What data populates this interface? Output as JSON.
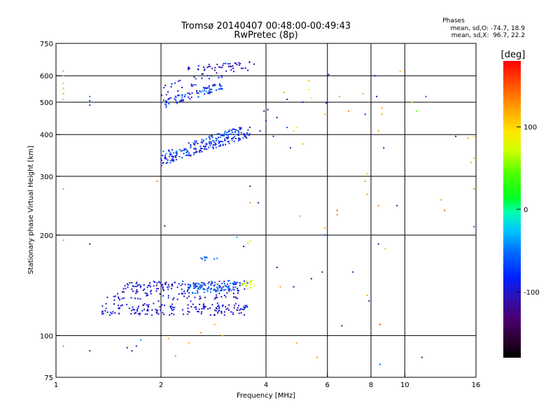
{
  "chart_data": {
    "type": "scatter",
    "title": "Tromsø 20140407 00:48:00-00:49:43",
    "subtitle": "RwPretec (8p)",
    "xlabel": "Frequency [MHz]",
    "ylabel": "Stationary phase Virtual Height [km]",
    "x_scale": "log",
    "y_scale": "log",
    "xlim": [
      1,
      16
    ],
    "ylim": [
      75,
      750
    ],
    "x_ticks": [
      1,
      2,
      4,
      6,
      8,
      10,
      16
    ],
    "x_tick_labels": [
      "1",
      "2",
      "4",
      "6",
      "8",
      "10",
      "16"
    ],
    "y_ticks": [
      75,
      100,
      200,
      300,
      400,
      500,
      600,
      750
    ],
    "y_tick_labels": [
      "75",
      "100",
      "200",
      "300",
      "400",
      "500",
      "600",
      "750"
    ],
    "grid": true,
    "stats": {
      "heading": "Phases",
      "line1": "mean, sd,O: -74.7, 18.9",
      "line2": "mean, sd,X:  96.7, 22.2"
    },
    "colorbar": {
      "label": "[deg]",
      "range": [
        -180,
        180
      ],
      "ticks": [
        100,
        0,
        -100
      ],
      "tick_labels": [
        "100",
        "0",
        "-100"
      ]
    },
    "traces": [
      {
        "x": [
          1.35,
          3.55
        ],
        "y": [
          120,
          120
        ],
        "h_jitter": 5,
        "n": 170,
        "phase_range": [
          -120,
          -75
        ]
      },
      {
        "x": [
          1.55,
          3.55
        ],
        "y": [
          140,
          141
        ],
        "h_jitter": 5,
        "n": 150,
        "phase_range": [
          -120,
          -70
        ]
      },
      {
        "x": [
          1.4,
          3.5
        ],
        "y": [
          130,
          131
        ],
        "h_jitter": 4,
        "n": 60,
        "phase_range": [
          -115,
          -80
        ]
      },
      {
        "x": [
          2.4,
          3.3
        ],
        "y": [
          138,
          142
        ],
        "h_jitter": 5,
        "n": 70,
        "phase_range": [
          -65,
          -40
        ]
      },
      {
        "x": [
          3.4,
          3.7
        ],
        "y": [
          140,
          144
        ],
        "h_jitter": 4,
        "n": 18,
        "phase_range": [
          50,
          90
        ]
      },
      {
        "x": [
          2.6,
          2.9
        ],
        "y": [
          170,
          170
        ],
        "h_jitter": 2,
        "n": 10,
        "phase_range": [
          -60,
          -45
        ]
      },
      {
        "x": [
          2.0,
          3.6
        ],
        "y": [
          330,
          400
        ],
        "h_jitter": 8,
        "n": 120,
        "phase_range": [
          -110,
          -55
        ]
      },
      {
        "x": [
          2.0,
          3.6
        ],
        "y": [
          345,
          420
        ],
        "h_jitter": 10,
        "n": 110,
        "phase_range": [
          -110,
          -40
        ]
      },
      {
        "x": [
          2.0,
          3.7
        ],
        "y": [
          540,
          650
        ],
        "h_jitter": 20,
        "n": 40,
        "phase_range": [
          -120,
          -70
        ]
      },
      {
        "x": [
          2.0,
          3.0
        ],
        "y": [
          490,
          560
        ],
        "h_jitter": 15,
        "n": 90,
        "phase_range": [
          -120,
          -40
        ]
      },
      {
        "x": [
          2.3,
          3.4
        ],
        "y": [
          625,
          645
        ],
        "h_jitter": 15,
        "n": 35,
        "phase_range": [
          -120,
          -80
        ]
      }
    ],
    "points": [
      {
        "x": 1.05,
        "y": 620,
        "phase": 120
      },
      {
        "x": 1.05,
        "y": 600,
        "phase": 120
      },
      {
        "x": 1.05,
        "y": 570,
        "phase": 110
      },
      {
        "x": 1.05,
        "y": 550,
        "phase": 115
      },
      {
        "x": 1.05,
        "y": 530,
        "phase": 120
      },
      {
        "x": 1.05,
        "y": 510,
        "phase": 110
      },
      {
        "x": 1.05,
        "y": 275,
        "phase": 130
      },
      {
        "x": 1.05,
        "y": 193,
        "phase": 125
      },
      {
        "x": 1.05,
        "y": 93,
        "phase": 135
      },
      {
        "x": 1.25,
        "y": 520,
        "phase": -50
      },
      {
        "x": 1.25,
        "y": 505,
        "phase": -70
      },
      {
        "x": 1.25,
        "y": 490,
        "phase": -95
      },
      {
        "x": 1.25,
        "y": 188,
        "phase": -110
      },
      {
        "x": 1.25,
        "y": 90,
        "phase": -130
      },
      {
        "x": 1.6,
        "y": 92,
        "phase": -110
      },
      {
        "x": 1.65,
        "y": 90,
        "phase": -120
      },
      {
        "x": 1.7,
        "y": 93,
        "phase": -100
      },
      {
        "x": 1.75,
        "y": 97,
        "phase": -40
      },
      {
        "x": 2.05,
        "y": 213,
        "phase": -130
      },
      {
        "x": 1.95,
        "y": 290,
        "phase": 140
      },
      {
        "x": 2.1,
        "y": 98,
        "phase": 125
      },
      {
        "x": 2.2,
        "y": 87,
        "phase": 140
      },
      {
        "x": 2.4,
        "y": 95,
        "phase": 110
      },
      {
        "x": 2.6,
        "y": 102,
        "phase": 125
      },
      {
        "x": 3.0,
        "y": 100,
        "phase": 110
      },
      {
        "x": 2.85,
        "y": 108,
        "phase": 120
      },
      {
        "x": 3.3,
        "y": 197,
        "phase": -30
      },
      {
        "x": 3.55,
        "y": 189,
        "phase": 60
      },
      {
        "x": 3.6,
        "y": 192,
        "phase": 70
      },
      {
        "x": 3.6,
        "y": 250,
        "phase": 130
      },
      {
        "x": 3.6,
        "y": 280,
        "phase": -120
      },
      {
        "x": 3.45,
        "y": 185,
        "phase": -110
      },
      {
        "x": 3.7,
        "y": 650,
        "phase": -150
      },
      {
        "x": 3.8,
        "y": 250,
        "phase": -120
      },
      {
        "x": 3.85,
        "y": 410,
        "phase": -100
      },
      {
        "x": 3.95,
        "y": 470,
        "phase": -120
      },
      {
        "x": 4.0,
        "y": 440,
        "phase": -90
      },
      {
        "x": 4.05,
        "y": 475,
        "phase": -130
      },
      {
        "x": 4.3,
        "y": 450,
        "phase": -110
      },
      {
        "x": 4.2,
        "y": 395,
        "phase": -100
      },
      {
        "x": 4.3,
        "y": 160,
        "phase": -110
      },
      {
        "x": 4.4,
        "y": 140,
        "phase": 120
      },
      {
        "x": 4.5,
        "y": 535,
        "phase": 120
      },
      {
        "x": 4.6,
        "y": 510,
        "phase": -120
      },
      {
        "x": 4.6,
        "y": 420,
        "phase": -60
      },
      {
        "x": 4.7,
        "y": 365,
        "phase": -110
      },
      {
        "x": 4.8,
        "y": 140,
        "phase": -100
      },
      {
        "x": 4.8,
        "y": 410,
        "phase": 100
      },
      {
        "x": 4.9,
        "y": 420,
        "phase": 80
      },
      {
        "x": 4.9,
        "y": 95,
        "phase": 110
      },
      {
        "x": 5.0,
        "y": 228,
        "phase": 125
      },
      {
        "x": 5.1,
        "y": 500,
        "phase": -100
      },
      {
        "x": 5.1,
        "y": 375,
        "phase": 120
      },
      {
        "x": 5.3,
        "y": 580,
        "phase": 110
      },
      {
        "x": 5.3,
        "y": 545,
        "phase": 100
      },
      {
        "x": 5.4,
        "y": 515,
        "phase": 70
      },
      {
        "x": 5.4,
        "y": 148,
        "phase": -110
      },
      {
        "x": 5.6,
        "y": 86,
        "phase": 130
      },
      {
        "x": 5.9,
        "y": 210,
        "phase": 125
      },
      {
        "x": 5.9,
        "y": 460,
        "phase": 120
      },
      {
        "x": 5.8,
        "y": 155,
        "phase": -110
      },
      {
        "x": 5.95,
        "y": 497,
        "phase": -120
      },
      {
        "x": 5.9,
        "y": 200,
        "phase": -60
      },
      {
        "x": 6.05,
        "y": 605,
        "phase": -100
      },
      {
        "x": 6.4,
        "y": 237,
        "phase": 150
      },
      {
        "x": 6.4,
        "y": 230,
        "phase": 130
      },
      {
        "x": 6.5,
        "y": 520,
        "phase": 120
      },
      {
        "x": 6.6,
        "y": 107,
        "phase": -110
      },
      {
        "x": 6.9,
        "y": 470,
        "phase": 130
      },
      {
        "x": 7.1,
        "y": 155,
        "phase": -100
      },
      {
        "x": 7.6,
        "y": 530,
        "phase": 120
      },
      {
        "x": 7.7,
        "y": 460,
        "phase": -90
      },
      {
        "x": 7.8,
        "y": 305,
        "phase": 110
      },
      {
        "x": 7.7,
        "y": 290,
        "phase": 130
      },
      {
        "x": 7.8,
        "y": 265,
        "phase": 125
      },
      {
        "x": 7.8,
        "y": 132,
        "phase": 120
      },
      {
        "x": 7.9,
        "y": 127,
        "phase": -110
      },
      {
        "x": 8.2,
        "y": 600,
        "phase": -120
      },
      {
        "x": 8.3,
        "y": 520,
        "phase": -110
      },
      {
        "x": 8.4,
        "y": 410,
        "phase": 120
      },
      {
        "x": 8.4,
        "y": 245,
        "phase": 140
      },
      {
        "x": 8.4,
        "y": 188,
        "phase": -120
      },
      {
        "x": 8.5,
        "y": 108,
        "phase": 160
      },
      {
        "x": 8.5,
        "y": 82,
        "phase": -60
      },
      {
        "x": 8.6,
        "y": 460,
        "phase": 120
      },
      {
        "x": 8.6,
        "y": 480,
        "phase": 130
      },
      {
        "x": 8.7,
        "y": 365,
        "phase": -100
      },
      {
        "x": 8.8,
        "y": 182,
        "phase": 110
      },
      {
        "x": 9.7,
        "y": 618,
        "phase": 110
      },
      {
        "x": 9.5,
        "y": 245,
        "phase": -120
      },
      {
        "x": 10.5,
        "y": 500,
        "phase": 60
      },
      {
        "x": 10.8,
        "y": 470,
        "phase": 50
      },
      {
        "x": 11.2,
        "y": 86,
        "phase": -120
      },
      {
        "x": 11.5,
        "y": 520,
        "phase": -60
      },
      {
        "x": 12.7,
        "y": 255,
        "phase": 120
      },
      {
        "x": 13.0,
        "y": 237,
        "phase": 150
      },
      {
        "x": 14.0,
        "y": 395,
        "phase": -120
      },
      {
        "x": 15.2,
        "y": 390,
        "phase": 120
      },
      {
        "x": 15.8,
        "y": 395,
        "phase": 100
      },
      {
        "x": 15.8,
        "y": 340,
        "phase": 110
      },
      {
        "x": 15.8,
        "y": 275,
        "phase": 130
      },
      {
        "x": 15.8,
        "y": 212,
        "phase": -60
      },
      {
        "x": 15.5,
        "y": 330,
        "phase": 110
      }
    ]
  }
}
